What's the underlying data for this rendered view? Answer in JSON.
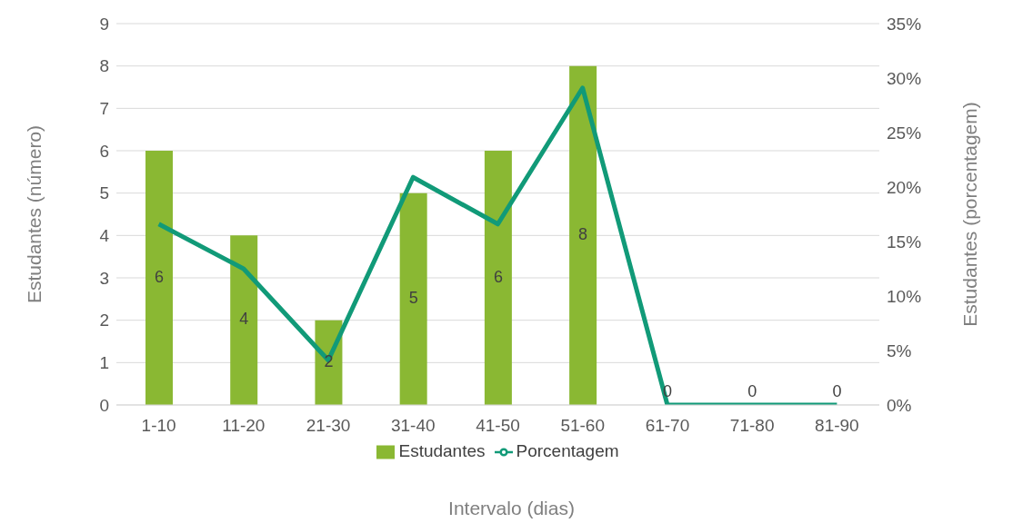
{
  "chart_data": {
    "type": "bar",
    "xlabel": "Intervalo (dias)",
    "ylabel": "Estudantes (número)",
    "y2label": "Estudantes (porcentagem)",
    "categories": [
      "1-10",
      "11-20",
      "21-30",
      "31-40",
      "41-50",
      "51-60",
      "61-70",
      "71-80",
      "81-90"
    ],
    "series": [
      {
        "name": "Estudantes",
        "color": "#8ab833",
        "values": [
          6,
          4,
          2,
          5,
          6,
          8,
          0,
          0,
          0
        ],
        "value_labels": [
          "6",
          "4",
          "2",
          "5",
          "6",
          "8",
          "0",
          "0",
          "0"
        ]
      },
      {
        "name": "Porcentagem",
        "type": "line",
        "axis": "y2",
        "color": "#119a78",
        "values": [
          16.6,
          12.5,
          4.1,
          20.9,
          16.6,
          29.1,
          0,
          0,
          0
        ]
      }
    ],
    "ylim": [
      0,
      9
    ],
    "yticks": [
      0,
      1,
      2,
      3,
      4,
      5,
      6,
      7,
      8,
      9
    ],
    "y2lim": [
      0,
      35
    ],
    "y2ticks": [
      {
        "value": 0,
        "label": "0%"
      },
      {
        "value": 5,
        "label": "5%"
      },
      {
        "value": 10,
        "label": "10%"
      },
      {
        "value": 15,
        "label": "15%"
      },
      {
        "value": 20,
        "label": "20%"
      },
      {
        "value": 25,
        "label": "25%"
      },
      {
        "value": 30,
        "label": "30%"
      },
      {
        "value": 35,
        "label": "35%"
      }
    ],
    "grid": "y",
    "legend": "bottom",
    "marker": "none",
    "line_style": "solid"
  }
}
